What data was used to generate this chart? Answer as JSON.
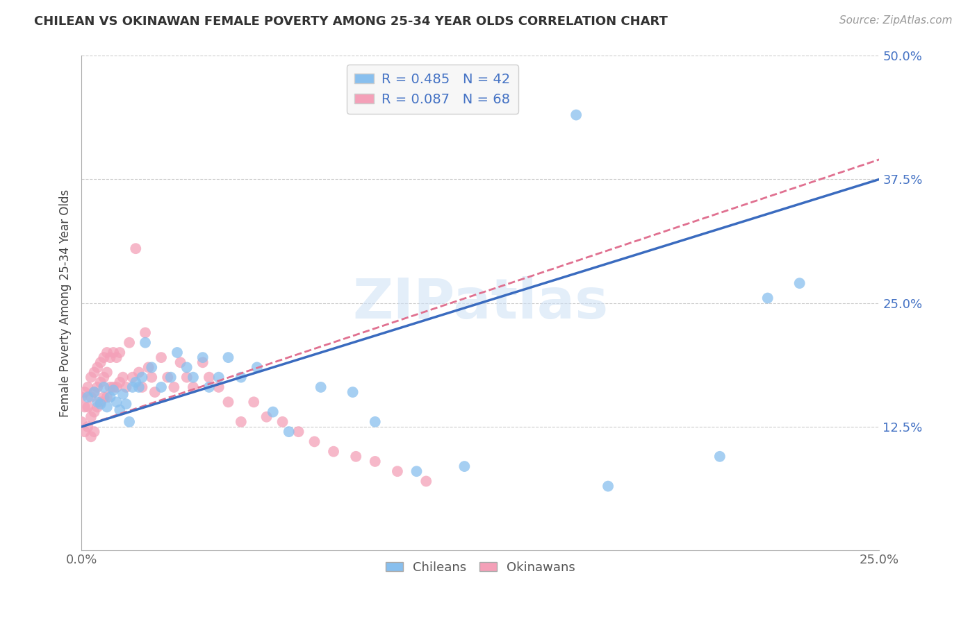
{
  "title": "CHILEAN VS OKINAWAN FEMALE POVERTY AMONG 25-34 YEAR OLDS CORRELATION CHART",
  "source": "Source: ZipAtlas.com",
  "ylabel": "Female Poverty Among 25-34 Year Olds",
  "xlabel_chileans": "Chileans",
  "xlabel_okinawans": "Okinawans",
  "xlim": [
    0.0,
    0.25
  ],
  "ylim": [
    0.0,
    0.5
  ],
  "yticks": [
    0.0,
    0.125,
    0.25,
    0.375,
    0.5
  ],
  "ytick_labels": [
    "",
    "12.5%",
    "25.0%",
    "37.5%",
    "50.0%"
  ],
  "xticks": [
    0.0,
    0.05,
    0.1,
    0.15,
    0.2,
    0.25
  ],
  "xtick_labels": [
    "0.0%",
    "",
    "",
    "",
    "",
    "25.0%"
  ],
  "chilean_color": "#88bfee",
  "okinawan_color": "#f4a0b8",
  "line_chilean_color": "#3a6bbf",
  "line_okinawan_color": "#e07090",
  "legend_R_chilean": "R = 0.485",
  "legend_N_chilean": "N = 42",
  "legend_R_okinawan": "R = 0.087",
  "legend_N_okinawan": "N = 68",
  "watermark": "ZIPatlas",
  "chilean_trend": [
    0.125,
    0.375
  ],
  "okinawan_trend": [
    0.125,
    0.395
  ],
  "chilean_x": [
    0.002,
    0.004,
    0.005,
    0.006,
    0.007,
    0.008,
    0.009,
    0.01,
    0.011,
    0.012,
    0.013,
    0.014,
    0.015,
    0.016,
    0.017,
    0.018,
    0.019,
    0.02,
    0.022,
    0.025,
    0.028,
    0.03,
    0.033,
    0.035,
    0.038,
    0.04,
    0.043,
    0.046,
    0.05,
    0.055,
    0.06,
    0.065,
    0.075,
    0.085,
    0.092,
    0.105,
    0.12,
    0.155,
    0.165,
    0.2,
    0.215,
    0.225
  ],
  "chilean_y": [
    0.155,
    0.16,
    0.15,
    0.148,
    0.165,
    0.145,
    0.155,
    0.162,
    0.15,
    0.142,
    0.158,
    0.148,
    0.13,
    0.165,
    0.17,
    0.165,
    0.175,
    0.21,
    0.185,
    0.165,
    0.175,
    0.2,
    0.185,
    0.175,
    0.195,
    0.165,
    0.175,
    0.195,
    0.175,
    0.185,
    0.14,
    0.12,
    0.165,
    0.16,
    0.13,
    0.08,
    0.085,
    0.44,
    0.065,
    0.095,
    0.255,
    0.27
  ],
  "okinawan_x": [
    0.0,
    0.0,
    0.001,
    0.001,
    0.001,
    0.002,
    0.002,
    0.002,
    0.003,
    0.003,
    0.003,
    0.003,
    0.004,
    0.004,
    0.004,
    0.004,
    0.005,
    0.005,
    0.005,
    0.006,
    0.006,
    0.006,
    0.007,
    0.007,
    0.007,
    0.008,
    0.008,
    0.008,
    0.009,
    0.009,
    0.01,
    0.01,
    0.011,
    0.011,
    0.012,
    0.012,
    0.013,
    0.014,
    0.015,
    0.016,
    0.017,
    0.018,
    0.019,
    0.02,
    0.021,
    0.022,
    0.023,
    0.025,
    0.027,
    0.029,
    0.031,
    0.033,
    0.035,
    0.038,
    0.04,
    0.043,
    0.046,
    0.05,
    0.054,
    0.058,
    0.063,
    0.068,
    0.073,
    0.079,
    0.086,
    0.092,
    0.099,
    0.108
  ],
  "okinawan_y": [
    0.155,
    0.13,
    0.16,
    0.145,
    0.12,
    0.165,
    0.145,
    0.125,
    0.175,
    0.155,
    0.135,
    0.115,
    0.18,
    0.16,
    0.14,
    0.12,
    0.185,
    0.165,
    0.145,
    0.19,
    0.17,
    0.15,
    0.195,
    0.175,
    0.155,
    0.2,
    0.18,
    0.155,
    0.195,
    0.165,
    0.2,
    0.165,
    0.195,
    0.165,
    0.2,
    0.17,
    0.175,
    0.165,
    0.21,
    0.175,
    0.305,
    0.18,
    0.165,
    0.22,
    0.185,
    0.175,
    0.16,
    0.195,
    0.175,
    0.165,
    0.19,
    0.175,
    0.165,
    0.19,
    0.175,
    0.165,
    0.15,
    0.13,
    0.15,
    0.135,
    0.13,
    0.12,
    0.11,
    0.1,
    0.095,
    0.09,
    0.08,
    0.07
  ]
}
